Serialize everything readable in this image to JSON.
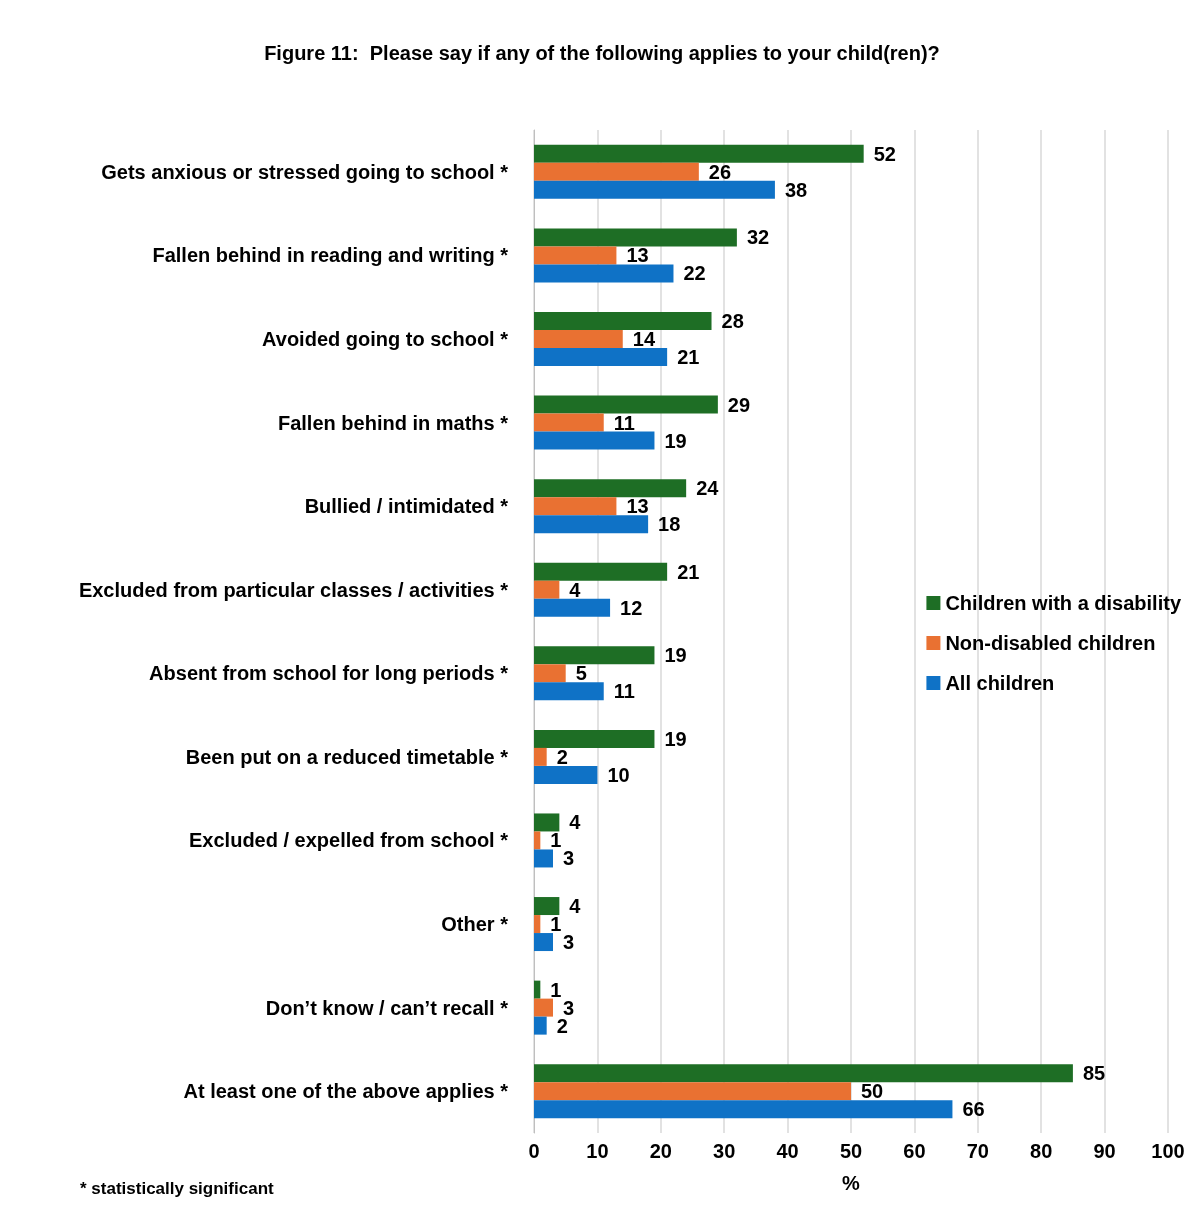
{
  "chart_data": {
    "type": "bar",
    "orientation": "horizontal",
    "title": "Figure 11:  Please say if any of the following applies to your child(ren)?",
    "xlabel": "%",
    "categories": [
      "Gets anxious or stressed going to school *",
      "Fallen behind in reading and writing *",
      "Avoided going to school *",
      "Fallen behind in maths *",
      "Bullied / intimidated *",
      "Excluded from particular classes / activities *",
      "Absent from school for long periods *",
      "Been put on a reduced timetable *",
      "Excluded / expelled from school *",
      "Other *",
      "Don’t know / can’t recall *",
      "At least one of the above applies *"
    ],
    "series": [
      {
        "name": "Children with a disability",
        "color": "#1e6e25",
        "values": [
          52,
          32,
          28,
          29,
          24,
          21,
          19,
          19,
          4,
          4,
          1,
          85
        ]
      },
      {
        "name": "Non-disabled children",
        "color": "#e97132",
        "values": [
          26,
          13,
          14,
          11,
          13,
          4,
          5,
          2,
          1,
          1,
          3,
          50
        ]
      },
      {
        "name": "All children",
        "color": "#0f72c6",
        "values": [
          38,
          22,
          21,
          19,
          18,
          12,
          11,
          10,
          3,
          3,
          2,
          66
        ]
      }
    ],
    "xlim": [
      0,
      100
    ],
    "xticks": [
      0,
      10,
      20,
      30,
      40,
      50,
      60,
      70,
      80,
      90,
      100
    ],
    "grid": "x",
    "legend": "right",
    "data_labels": true,
    "annotations": [
      "* statistically significant"
    ]
  }
}
